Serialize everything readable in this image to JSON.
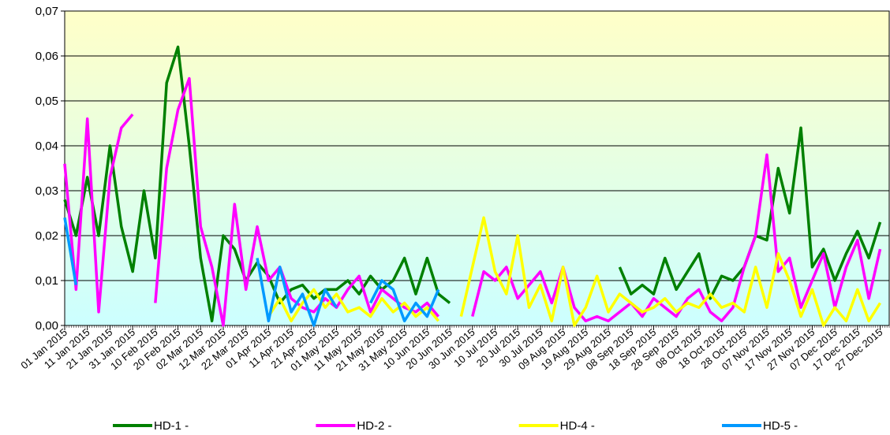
{
  "chart_data": {
    "type": "line",
    "x": [
      "01 Jan 2015",
      "06 Jan 2015",
      "11 Jan 2015",
      "16 Jan 2015",
      "21 Jan 2015",
      "26 Jan 2015",
      "31 Jan 2015",
      "05 Feb 2015",
      "10 Feb 2015",
      "15 Feb 2015",
      "20 Feb 2015",
      "25 Feb 2015",
      "02 Mar 2015",
      "07 Mar 2015",
      "12 Mar 2015",
      "17 Mar 2015",
      "22 Mar 2015",
      "27 Mar 2015",
      "01 Apr 2015",
      "06 Apr 2015",
      "11 Apr 2015",
      "16 Apr 2015",
      "21 Apr 2015",
      "26 Apr 2015",
      "01 May 2015",
      "06 May 2015",
      "11 May 2015",
      "16 May 2015",
      "21 May 2015",
      "26 May 2015",
      "31 May 2015",
      "05 Jun 2015",
      "10 Jun 2015",
      "15 Jun 2015",
      "20 Jun 2015",
      "25 Jun 2015",
      "30 Jun 2015",
      "05 Jul 2015",
      "10 Jul 2015",
      "15 Jul 2015",
      "20 Jul 2015",
      "25 Jul 2015",
      "30 Jul 2015",
      "04 Aug 2015",
      "09 Aug 2015",
      "14 Aug 2015",
      "19 Aug 2015",
      "24 Aug 2015",
      "29 Aug 2015",
      "03 Sep 2015",
      "08 Sep 2015",
      "13 Sep 2015",
      "18 Sep 2015",
      "23 Sep 2015",
      "28 Sep 2015",
      "03 Oct 2015",
      "08 Oct 2015",
      "13 Oct 2015",
      "18 Oct 2015",
      "23 Oct 2015",
      "28 Oct 2015",
      "02 Nov 2015",
      "07 Nov 2015",
      "12 Nov 2015",
      "17 Nov 2015",
      "22 Nov 2015",
      "27 Nov 2015",
      "02 Dec 2015",
      "07 Dec 2015",
      "12 Dec 2015",
      "17 Dec 2015",
      "22 Dec 2015",
      "27 Dec 2015"
    ],
    "xlim": [
      "01 Jan 2015",
      "31 Dec 2015"
    ],
    "xticks": [
      "01 Jan 2015",
      "11 Jan 2015",
      "21 Jan 2015",
      "31 Jan 2015",
      "10 Feb 2015",
      "20 Feb 2015",
      "02 Mar 2015",
      "12 Mar 2015",
      "22 Mar 2015",
      "01 Apr 2015",
      "11 Apr 2015",
      "21 Apr 2015",
      "01 May 2015",
      "11 May 2015",
      "21 May 2015",
      "31 May 2015",
      "10 Jun 2015",
      "20 Jun 2015",
      "30 Jun 2015",
      "10 Jul 2015",
      "20 Jul 2015",
      "30 Jul 2015",
      "09 Aug 2015",
      "19 Aug 2015",
      "29 Aug 2015",
      "08 Sep 2015",
      "18 Sep 2015",
      "28 Sep 2015",
      "08 Oct 2015",
      "18 Oct 2015",
      "28 Oct 2015",
      "07 Nov 2015",
      "17 Nov 2015",
      "27 Nov 2015",
      "07 Dec 2015",
      "17 Dec 2015",
      "27 Dec 2015"
    ],
    "ylim": [
      0,
      0.07
    ],
    "yticks": [
      {
        "value": 0,
        "label": "0,00"
      },
      {
        "value": 0.01,
        "label": "0,01"
      },
      {
        "value": 0.02,
        "label": "0,02"
      },
      {
        "value": 0.03,
        "label": "0,03"
      },
      {
        "value": 0.04,
        "label": "0,04"
      },
      {
        "value": 0.05,
        "label": "0,05"
      },
      {
        "value": 0.06,
        "label": "0,06"
      },
      {
        "value": 0.07,
        "label": "0,07"
      }
    ],
    "grid": true,
    "legend": "bottom",
    "series": [
      {
        "name": "HD-1 -",
        "color": "#008000",
        "values": [
          0.028,
          0.02,
          0.033,
          0.02,
          0.04,
          0.022,
          0.012,
          0.03,
          0.015,
          0.054,
          0.062,
          0.04,
          0.015,
          0.001,
          0.02,
          0.017,
          0.01,
          0.014,
          0.011,
          0.005,
          0.008,
          0.009,
          0.006,
          0.008,
          0.008,
          0.01,
          0.007,
          0.011,
          0.008,
          0.01,
          0.015,
          0.007,
          0.015,
          0.007,
          0.005,
          null,
          null,
          null,
          null,
          null,
          null,
          null,
          null,
          null,
          null,
          null,
          null,
          null,
          null,
          0.013,
          0.007,
          0.009,
          0.007,
          0.015,
          0.008,
          0.012,
          0.016,
          0.006,
          0.011,
          0.01,
          0.013,
          0.02,
          0.019,
          0.035,
          0.025,
          0.044,
          0.013,
          0.017,
          0.01,
          0.016,
          0.021,
          0.015,
          0.023
        ]
      },
      {
        "name": "HD-2 -",
        "color": "#ff00ff",
        "values": [
          0.036,
          0.008,
          0.046,
          0.003,
          0.033,
          0.044,
          0.047,
          null,
          0.005,
          0.035,
          0.048,
          0.055,
          0.022,
          0.013,
          0,
          0.027,
          0.008,
          0.022,
          0.01,
          0.013,
          0.006,
          0.004,
          0.003,
          0.006,
          0.004,
          0.008,
          0.011,
          0.003,
          0.008,
          0.006,
          0.004,
          0.003,
          0.005,
          0.002,
          null,
          null,
          0.002,
          0.012,
          0.01,
          0.013,
          0.006,
          0.009,
          0.012,
          0.005,
          0.013,
          0.004,
          0.001,
          0.002,
          0.001,
          0.003,
          0.005,
          0.002,
          0.006,
          0.004,
          0.002,
          0.006,
          0.008,
          0.003,
          0.001,
          0.004,
          0.013,
          0.02,
          0.038,
          0.012,
          0.015,
          0.004,
          0.01,
          0.016,
          0.004,
          0.013,
          0.019,
          0.006,
          0.017
        ]
      },
      {
        "name": "HD-4 -",
        "color": "#ffff00",
        "values": [
          null,
          null,
          null,
          null,
          null,
          null,
          null,
          null,
          null,
          null,
          null,
          null,
          null,
          null,
          null,
          null,
          null,
          null,
          0.002,
          0.006,
          0.001,
          0.005,
          0.008,
          0.004,
          0.007,
          0.003,
          0.004,
          0.002,
          0.006,
          0.003,
          0.005,
          0.002,
          0.004,
          0.001,
          null,
          0.002,
          0.013,
          0.024,
          0.012,
          0.007,
          0.02,
          0.004,
          0.009,
          0.001,
          0.013,
          0,
          0.004,
          0.011,
          0.003,
          0.007,
          0.005,
          0.003,
          0.004,
          0.006,
          0.003,
          0.005,
          0.004,
          0.007,
          0.004,
          0.005,
          0.003,
          0.013,
          0.004,
          0.016,
          0.01,
          0.002,
          0.008,
          0,
          0.004,
          0.001,
          0.008,
          0.001,
          0.005
        ]
      },
      {
        "name": "HD-5 -",
        "color": "#0099ff",
        "values": [
          0.024,
          0.009,
          null,
          null,
          null,
          null,
          null,
          null,
          null,
          null,
          null,
          null,
          null,
          null,
          null,
          null,
          null,
          0.015,
          0.001,
          0.013,
          0.003,
          0.007,
          0,
          0.008,
          0.004,
          null,
          null,
          0.005,
          0.01,
          0.008,
          0.001,
          0.005,
          0.002,
          0.008,
          null,
          null,
          null,
          null,
          null,
          null,
          null,
          null,
          null,
          null,
          null,
          null,
          null,
          null,
          null,
          null,
          null,
          null,
          null,
          null,
          null,
          null,
          null,
          null,
          null,
          null,
          null,
          null,
          null,
          null,
          null,
          null,
          null,
          null,
          null,
          null,
          null,
          null,
          null
        ]
      }
    ]
  }
}
